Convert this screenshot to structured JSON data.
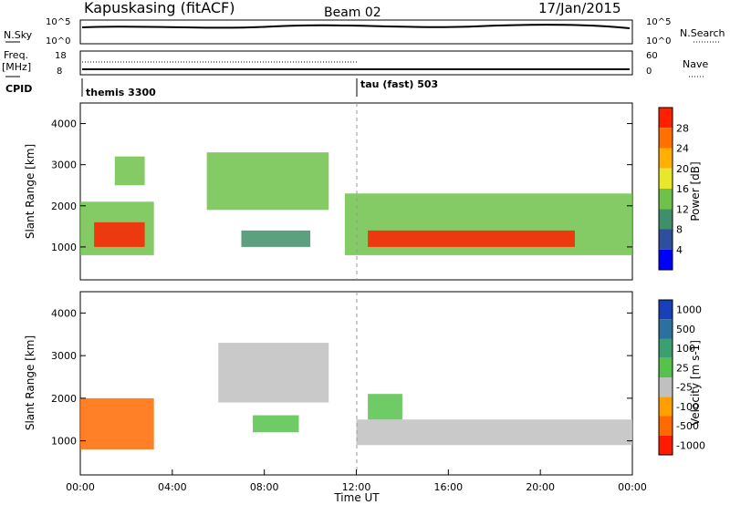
{
  "header": {
    "station": "Kapuskasing (fitACF)",
    "beam": "Beam 02",
    "date": "17/Jan/2015"
  },
  "panel_labels": {
    "nsky": "N.Sky",
    "freq": "Freq.",
    "freq_unit": "[MHz]",
    "cpid": "CPID",
    "nsearch": "N.Search",
    "nave": "Nave"
  },
  "noise_axis": {
    "left_top": "10^5",
    "left_bottom": "10^0",
    "right_top": "10^5",
    "right_bottom": "10^0"
  },
  "freq_axis": {
    "left_ticks": [
      "18",
      "8"
    ],
    "right_ticks": [
      "60",
      "0"
    ]
  },
  "cpid_segments": [
    {
      "label": "themis 3300",
      "start_hour": 0
    },
    {
      "label": "tau (fast) 503",
      "start_hour": 12
    }
  ],
  "power_colorbar": {
    "label": "Power [dB]",
    "ticks": [
      "4",
      "8",
      "12",
      "16",
      "20",
      "24",
      "28"
    ],
    "colors": [
      "#0000ff",
      "#2e4f9e",
      "#3f8f6a",
      "#6ec24a",
      "#e8e82a",
      "#ffb000",
      "#ff7000",
      "#ff2000"
    ]
  },
  "velocity_colorbar": {
    "label": "Velocity [m s-1]",
    "ticks": [
      "1000",
      "500",
      "100",
      "25",
      "-25",
      "-100",
      "-500",
      "-1000"
    ],
    "colors": [
      "#1840b8",
      "#2a70a0",
      "#3aa070",
      "#55c24a",
      "#c0c0c0",
      "#ffa000",
      "#ff6a00",
      "#ff1a00"
    ]
  },
  "chart_data": [
    {
      "type": "heatmap",
      "name": "power",
      "ylabel": "Slant Range [km]",
      "ylim": [
        200,
        4500
      ],
      "xlim": [
        0,
        24
      ],
      "y_ticks": [
        1000,
        2000,
        3000,
        4000
      ],
      "regions": [
        {
          "x": [
            0.0,
            3.2
          ],
          "y": [
            800,
            2100
          ],
          "level": 3
        },
        {
          "x": [
            0.6,
            2.8
          ],
          "y": [
            1000,
            1600
          ],
          "level": 7
        },
        {
          "x": [
            1.5,
            2.8
          ],
          "y": [
            2500,
            3200
          ],
          "level": 3
        },
        {
          "x": [
            5.5,
            10.8
          ],
          "y": [
            1900,
            3300
          ],
          "level": 3
        },
        {
          "x": [
            7.0,
            10.0
          ],
          "y": [
            1000,
            1400
          ],
          "level": 2
        },
        {
          "x": [
            11.5,
            24.0
          ],
          "y": [
            800,
            2300
          ],
          "level": 3
        },
        {
          "x": [
            12.5,
            21.5
          ],
          "y": [
            1000,
            1400
          ],
          "level": 7
        }
      ]
    },
    {
      "type": "heatmap",
      "name": "velocity",
      "ylabel": "Slant Range [km]",
      "ylim": [
        200,
        4500
      ],
      "xlim": [
        0,
        24
      ],
      "y_ticks": [
        1000,
        2000,
        3000,
        4000
      ],
      "x_ticks": [
        "00:00",
        "04:00",
        "08:00",
        "12:00",
        "16:00",
        "20:00",
        "00:00"
      ],
      "xlabel": "Time UT",
      "regions": [
        {
          "x": [
            0.0,
            3.2
          ],
          "y": [
            800,
            2000
          ],
          "level": 6
        },
        {
          "x": [
            6.0,
            10.8
          ],
          "y": [
            1900,
            3300
          ],
          "level": 4
        },
        {
          "x": [
            7.5,
            9.5
          ],
          "y": [
            1200,
            1600
          ],
          "level": 3
        },
        {
          "x": [
            12.0,
            24.0
          ],
          "y": [
            900,
            1500
          ],
          "level": 4
        },
        {
          "x": [
            12.5,
            14.0
          ],
          "y": [
            1500,
            2100
          ],
          "level": 3
        }
      ]
    }
  ]
}
